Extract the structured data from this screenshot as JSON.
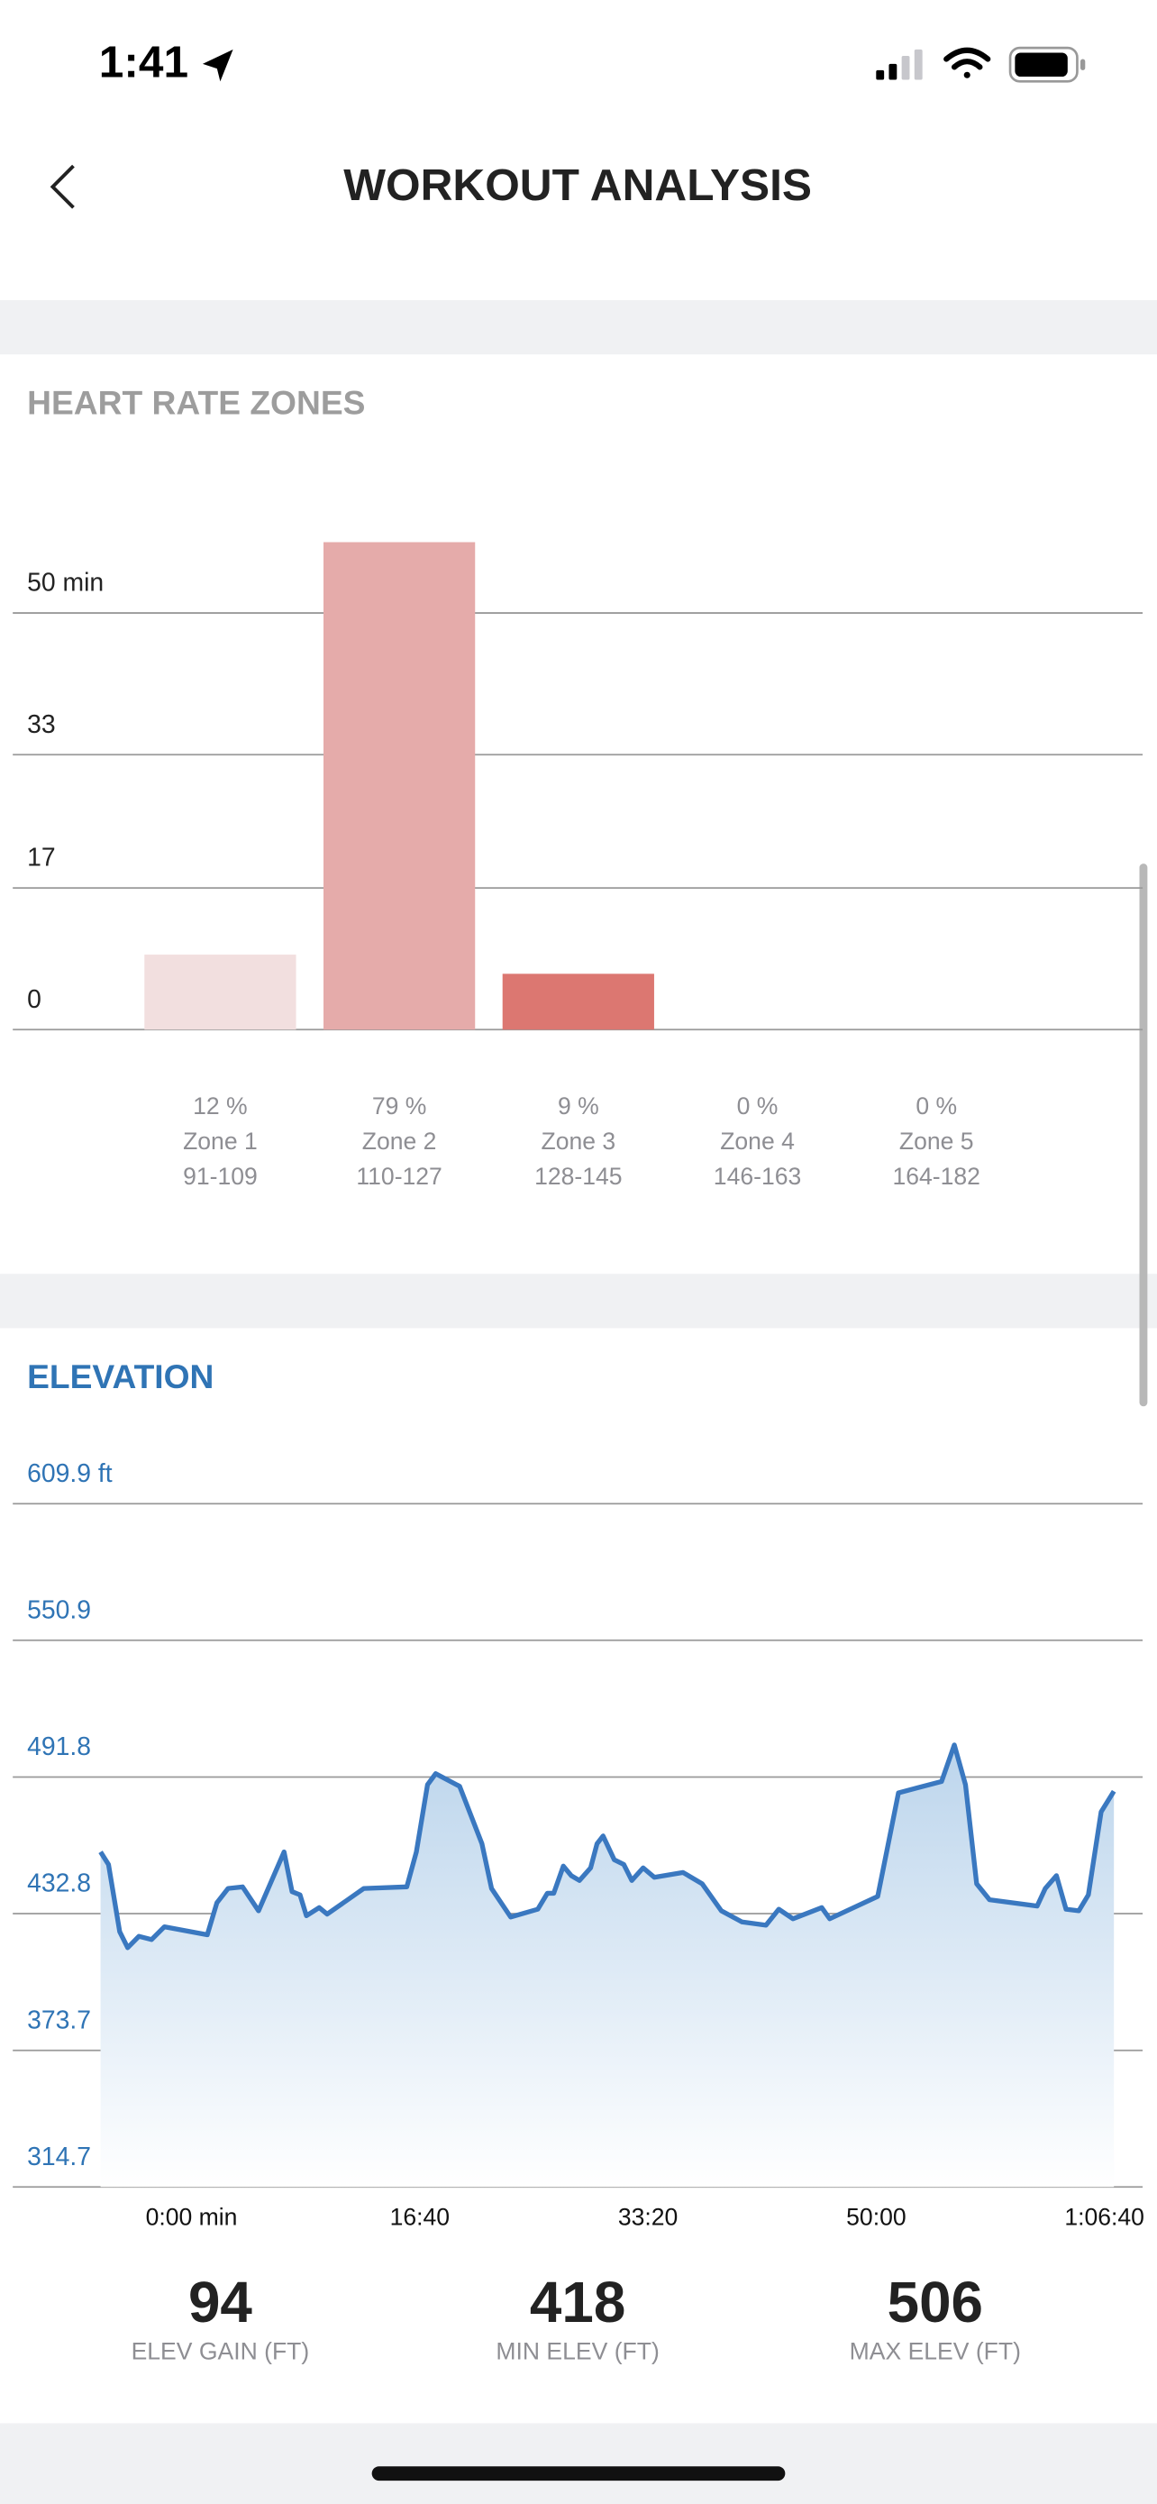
{
  "status_bar": {
    "time": "1:41"
  },
  "header": {
    "title": "WORKOUT ANALYSIS"
  },
  "chart_data": [
    {
      "type": "bar",
      "title": "HEART RATE ZONES",
      "categories": [
        "Zone 1",
        "Zone 2",
        "Zone 3",
        "Zone 4",
        "Zone 5"
      ],
      "percent_labels": [
        "12 %",
        "79 %",
        "9 %",
        "0 %",
        "0 %"
      ],
      "ranges": [
        "91-109",
        "110-127",
        "128-145",
        "146-163",
        "164-182"
      ],
      "values": [
        9,
        58.5,
        6.7,
        0,
        0
      ],
      "colors": [
        "#f2dfdf",
        "#e5abaa",
        "#dc7771",
        "#c94a44",
        "#b02a25"
      ],
      "ylim": [
        0,
        60
      ],
      "yticks": [
        0,
        17,
        33,
        {
          "value": 50,
          "label": "50 min"
        }
      ],
      "grid": true
    },
    {
      "type": "line",
      "title": "ELEVATION",
      "color": "#3a78c0",
      "x": [
        0,
        35,
        84,
        119,
        168,
        224,
        280,
        468,
        510,
        559,
        622,
        692,
        804,
        839,
        874,
        902,
        958,
        993,
        1154,
        1342,
        1384,
        1433,
        1468,
        1573,
        1671,
        1713,
        1797,
        1916,
        1958,
        1986,
        2028,
        2063,
        2098,
        2147,
        2175,
        2202,
        2251,
        2293,
        2328,
        2377,
        2426,
        2552,
        2636,
        2720,
        2811,
        2916,
        2972,
        3034,
        3160,
        3195,
        3405,
        3496,
        3685,
        3741,
        3790,
        3839,
        3895,
        4104,
        4139,
        4188,
        4230,
        4286,
        4328,
        4384,
        4440
      ],
      "values": [
        459.5,
        454.0,
        425.0,
        418.1,
        423.0,
        421.6,
        427.1,
        423.7,
        437.5,
        443.7,
        444.4,
        434.0,
        459.5,
        442.3,
        440.9,
        431.9,
        435.4,
        432.6,
        443.7,
        444.4,
        459.5,
        488.5,
        493.3,
        487.8,
        463.0,
        443.7,
        431.3,
        434.7,
        441.6,
        441.6,
        453.3,
        449.2,
        447.1,
        452.6,
        463.0,
        466.4,
        456.1,
        454.0,
        447.1,
        452.6,
        448.5,
        450.6,
        445.7,
        434.0,
        429.2,
        427.8,
        434.7,
        430.6,
        435.4,
        430.6,
        440.2,
        485.0,
        489.9,
        505.7,
        488.5,
        445.7,
        438.8,
        436.1,
        443.7,
        449.2,
        434.7,
        434.0,
        440.9,
        476.8,
        485.7
      ],
      "xlim": [
        0,
        4440
      ],
      "xticks": [
        {
          "value": 0,
          "label": "0:00 min"
        },
        {
          "value": 1000,
          "label": "16:40"
        },
        {
          "value": 2000,
          "label": "33:20"
        },
        {
          "value": 3000,
          "label": "50:00"
        },
        {
          "value": 4000,
          "label": "1:06:40"
        }
      ],
      "ylim": [
        314.7,
        609.9
      ],
      "yticks": [
        314.7,
        373.7,
        432.8,
        491.8,
        550.9,
        {
          "value": 609.9,
          "label": "609.9 ft"
        }
      ],
      "grid": true
    }
  ],
  "stats": [
    {
      "value": 94,
      "label": "ELEV GAIN (FT)"
    },
    {
      "value": 418,
      "label": "MIN ELEV (FT)"
    },
    {
      "value": 506,
      "label": "MAX ELEV (FT)"
    }
  ]
}
